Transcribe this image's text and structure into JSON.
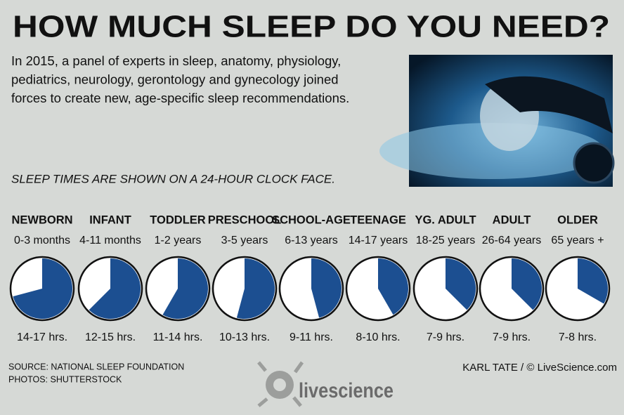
{
  "chart_data": {
    "type": "clock",
    "title": "HOW MUCH SLEEP DO YOU NEED?",
    "intro": [
      "In 2015, a panel of experts in sleep, anatomy, physiology,",
      "pediatrics, neurology, gerontology and gynecology joined",
      "forces to create new, age-specific sleep recommendations."
    ],
    "note": "SLEEP TIMES ARE SHOWN ON A 24-HOUR CLOCK FACE.",
    "categories": [
      "NEWBORN",
      "INFANT",
      "TODDLER",
      "PRESCHOOL",
      "SCHOOL-AGE",
      "TEENAGE",
      "YG. ADULT",
      "ADULT",
      "OLDER"
    ],
    "ages": [
      "0-3 months",
      "4-11 months",
      "1-2 years",
      "3-5 years",
      "6-13 years",
      "14-17 years",
      "18-25 years",
      "26-64 years",
      "65 years +"
    ],
    "values": [
      17,
      15,
      14,
      13,
      11,
      10,
      9,
      9,
      8
    ],
    "value_labels": [
      "14-17 hrs.",
      "12-15 hrs.",
      "11-14 hrs.",
      "10-13 hrs.",
      "9-11 hrs.",
      "8-10 hrs.",
      "7-9 hrs.",
      "7-9 hrs.",
      "7-8 hrs."
    ],
    "ylim": [
      0,
      24
    ],
    "color": "#1c4f91",
    "source": [
      "SOURCE: NATIONAL SLEEP FOUNDATION",
      "PHOTOS: SHUTTERSTOCK"
    ],
    "credit": "KARL TATE / © LiveScience.com",
    "logo": "livescience"
  }
}
